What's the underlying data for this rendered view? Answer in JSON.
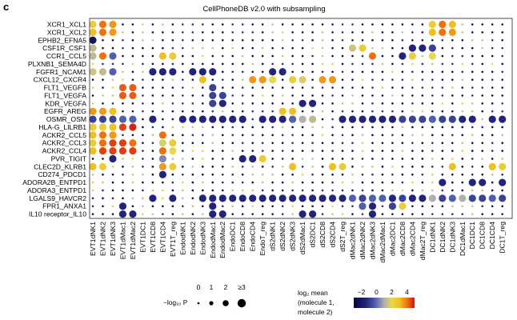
{
  "panel_letter": "c",
  "chart_data": {
    "type": "heatmap",
    "title": "CellPhoneDB v2.0 with subsampling",
    "rows": [
      "XCR1_XCL1",
      "XCR1_XCL2",
      "EPHB2_EFNA5",
      "CSF1R_CSF1",
      "CCR1_CCL5",
      "PLXNB1_SEMA4D",
      "FGFR1_NCAM1",
      "CXCL12_CXCR4",
      "FLT1_VEGFB",
      "FLT1_VEGFA",
      "KDR_VEGFA",
      "EGFR_AREG",
      "OSMR_OSM",
      "HLA-G_LILRB1",
      "ACKR2_CCL5",
      "ACKR2_CCL3",
      "ACKR2_CCL4",
      "PVR_TIGIT",
      "CLEC2D_KLRB1",
      "CD274_PDCD1",
      "ADORA2B_ENTPD1",
      "ADORA3_ENTPD1",
      "LGALS9_HAVCR2",
      "FPR1_ANXA1",
      "IL10 receptor_IL10"
    ],
    "columns": [
      "EVT1dNK1",
      "EVT1dNK2",
      "EVT1dNK3",
      "EVT1dMac1",
      "EVT1dMac2",
      "EVT1DC1",
      "EVT1CD8",
      "EVT1CD4",
      "EVT1T_reg",
      "EndodNK1",
      "EndodNK2",
      "EndodNK3",
      "EndodMac1",
      "EndodMac2",
      "EndoDC1",
      "EndoCD8",
      "EndoCD4",
      "EndoT_reg",
      "dS2dNK1",
      "dS2dNK2",
      "dS2dNK3",
      "dS2dMac1",
      "dS2DC1",
      "dS2CD8",
      "dS2CD4",
      "dS2T_reg",
      "dMac2dNK1",
      "dMac2dNK2",
      "dMac2dNK3",
      "dMac2dMac1",
      "dMac2DC1",
      "dMac2CD8",
      "dMac2CD4",
      "dMac2T_reg",
      "DC1dNK1",
      "DC1dNK2",
      "DC1dNK3",
      "DC1dMac1",
      "DC1DC1",
      "DC1CD8",
      "DC1CD4",
      "DC1T_reg"
    ],
    "size_legend": {
      "label": "−log₁₀ P",
      "values": [
        "0",
        "1",
        "2",
        "≥3"
      ]
    },
    "color_legend": {
      "title_line1": "log₂ mean",
      "title_line2": "(molecule 1,",
      "title_line3": "molecule 2)",
      "ticks": [
        "−2",
        "0",
        "2",
        "4"
      ],
      "range": [
        -3,
        5
      ]
    },
    "colors": {
      "low": "#0a0a5a",
      "mid": "#8888a8",
      "high": "#f0e020",
      "max": "#e01010"
    },
    "grid": false,
    "cells": [
      {
        "r": 0,
        "c": 0,
        "v": 2.5,
        "p": 3
      },
      {
        "r": 0,
        "c": 1,
        "v": 4,
        "p": 3
      },
      {
        "r": 0,
        "c": 2,
        "v": 3.5,
        "p": 3
      },
      {
        "r": 0,
        "c": 34,
        "v": 2.5,
        "p": 3
      },
      {
        "r": 0,
        "c": 35,
        "v": 4,
        "p": 3
      },
      {
        "r": 0,
        "c": 36,
        "v": 3,
        "p": 3
      },
      {
        "r": 1,
        "c": 0,
        "v": 3,
        "p": 3
      },
      {
        "r": 1,
        "c": 1,
        "v": 4,
        "p": 3
      },
      {
        "r": 1,
        "c": 2,
        "v": 3.5,
        "p": 3
      },
      {
        "r": 1,
        "c": 34,
        "v": 3,
        "p": 3
      },
      {
        "r": 1,
        "c": 35,
        "v": 4,
        "p": 3
      },
      {
        "r": 1,
        "c": 36,
        "v": 3.5,
        "p": 3
      },
      {
        "r": 2,
        "c": 0,
        "v": -2.5,
        "p": 3
      },
      {
        "r": 3,
        "c": 0,
        "v": 0.5,
        "p": 3
      },
      {
        "r": 3,
        "c": 26,
        "v": 1,
        "p": 3
      },
      {
        "r": 3,
        "c": 27,
        "v": 2.5,
        "p": 3
      },
      {
        "r": 3,
        "c": 32,
        "v": -2,
        "p": 3
      },
      {
        "r": 3,
        "c": 33,
        "v": -2,
        "p": 3
      },
      {
        "r": 3,
        "c": 34,
        "v": -1.5,
        "p": 3
      },
      {
        "r": 4,
        "c": 0,
        "v": 0.5,
        "p": 3
      },
      {
        "r": 4,
        "c": 1,
        "v": 4,
        "p": 3
      },
      {
        "r": 4,
        "c": 2,
        "v": -1,
        "p": 3
      },
      {
        "r": 4,
        "c": 7,
        "v": 3,
        "p": 3
      },
      {
        "r": 4,
        "c": 8,
        "v": 2.5,
        "p": 3
      },
      {
        "r": 4,
        "c": 28,
        "v": 4,
        "p": 3
      },
      {
        "r": 4,
        "c": 31,
        "v": -2,
        "p": 3
      },
      {
        "r": 4,
        "c": 32,
        "v": 2.5,
        "p": 3
      },
      {
        "r": 4,
        "c": 34,
        "v": 2,
        "p": 3
      },
      {
        "r": 6,
        "c": 0,
        "v": 1,
        "p": 3
      },
      {
        "r": 6,
        "c": 1,
        "v": 0.5,
        "p": 3
      },
      {
        "r": 6,
        "c": 2,
        "v": -1,
        "p": 3
      },
      {
        "r": 6,
        "c": 6,
        "v": -2,
        "p": 3
      },
      {
        "r": 6,
        "c": 7,
        "v": -2,
        "p": 3
      },
      {
        "r": 6,
        "c": 8,
        "v": -2,
        "p": 3
      },
      {
        "r": 6,
        "c": 10,
        "v": -2,
        "p": 3
      },
      {
        "r": 6,
        "c": 11,
        "v": -2,
        "p": 3
      },
      {
        "r": 6,
        "c": 12,
        "v": -2,
        "p": 3
      },
      {
        "r": 6,
        "c": 18,
        "v": -2,
        "p": 3
      },
      {
        "r": 6,
        "c": 19,
        "v": -2,
        "p": 3
      },
      {
        "r": 7,
        "c": 11,
        "v": 3,
        "p": 3
      },
      {
        "r": 7,
        "c": 16,
        "v": 3.5,
        "p": 3
      },
      {
        "r": 7,
        "c": 17,
        "v": 3.5,
        "p": 3
      },
      {
        "r": 7,
        "c": 18,
        "v": 2,
        "p": 3
      },
      {
        "r": 7,
        "c": 20,
        "v": 2.5,
        "p": 3
      },
      {
        "r": 7,
        "c": 21,
        "v": 1.5,
        "p": 3
      },
      {
        "r": 7,
        "c": 23,
        "v": 3.5,
        "p": 3
      },
      {
        "r": 7,
        "c": 24,
        "v": 3.5,
        "p": 3
      },
      {
        "r": 8,
        "c": 3,
        "v": 4.2,
        "p": 3
      },
      {
        "r": 8,
        "c": 4,
        "v": 4.2,
        "p": 3
      },
      {
        "r": 8,
        "c": 12,
        "v": -1.5,
        "p": 3
      },
      {
        "r": 9,
        "c": 3,
        "v": 4.2,
        "p": 3
      },
      {
        "r": 9,
        "c": 4,
        "v": 4.2,
        "p": 3
      },
      {
        "r": 9,
        "c": 12,
        "v": -1.5,
        "p": 3
      },
      {
        "r": 9,
        "c": 13,
        "v": -1.5,
        "p": 3
      },
      {
        "r": 10,
        "c": 12,
        "v": -1.5,
        "p": 3
      },
      {
        "r": 10,
        "c": 13,
        "v": -2,
        "p": 3
      },
      {
        "r": 10,
        "c": 21,
        "v": -2,
        "p": 3
      },
      {
        "r": 10,
        "c": 22,
        "v": -2,
        "p": 3
      },
      {
        "r": 11,
        "c": 0,
        "v": 3.5,
        "p": 3
      },
      {
        "r": 11,
        "c": 1,
        "v": 3.5,
        "p": 3
      },
      {
        "r": 11,
        "c": 2,
        "v": 3,
        "p": 3
      },
      {
        "r": 11,
        "c": 19,
        "v": 3,
        "p": 3
      },
      {
        "r": 11,
        "c": 20,
        "v": 3,
        "p": 3
      },
      {
        "r": 12,
        "c": 0,
        "v": -1.5,
        "p": 3
      },
      {
        "r": 12,
        "c": 1,
        "v": -1.5,
        "p": 3
      },
      {
        "r": 12,
        "c": 2,
        "v": -1.5,
        "p": 3
      },
      {
        "r": 12,
        "c": 3,
        "v": -1,
        "p": 3
      },
      {
        "r": 12,
        "c": 4,
        "v": -1,
        "p": 3
      },
      {
        "r": 12,
        "c": 6,
        "v": -2,
        "p": 3
      },
      {
        "r": 12,
        "c": 9,
        "v": -2,
        "p": 3
      },
      {
        "r": 12,
        "c": 10,
        "v": -2,
        "p": 3
      },
      {
        "r": 12,
        "c": 11,
        "v": -2,
        "p": 3
      },
      {
        "r": 12,
        "c": 12,
        "v": -2,
        "p": 3
      },
      {
        "r": 12,
        "c": 13,
        "v": -2,
        "p": 3
      },
      {
        "r": 12,
        "c": 14,
        "v": -2,
        "p": 3
      },
      {
        "r": 12,
        "c": 15,
        "v": -2,
        "p": 3
      },
      {
        "r": 12,
        "c": 17,
        "v": -2,
        "p": 3
      },
      {
        "r": 12,
        "c": 18,
        "v": -2,
        "p": 3
      },
      {
        "r": 12,
        "c": 19,
        "v": -2,
        "p": 3
      },
      {
        "r": 12,
        "c": 20,
        "v": -1,
        "p": 3
      },
      {
        "r": 12,
        "c": 21,
        "v": 0,
        "p": 3
      },
      {
        "r": 12,
        "c": 22,
        "v": 0.5,
        "p": 3
      },
      {
        "r": 12,
        "c": 25,
        "v": -2,
        "p": 3
      },
      {
        "r": 12,
        "c": 26,
        "v": -2,
        "p": 3
      },
      {
        "r": 12,
        "c": 27,
        "v": -2,
        "p": 3
      },
      {
        "r": 12,
        "c": 28,
        "v": -2,
        "p": 3
      },
      {
        "r": 12,
        "c": 29,
        "v": -2,
        "p": 3
      },
      {
        "r": 12,
        "c": 30,
        "v": -2,
        "p": 3
      },
      {
        "r": 12,
        "c": 31,
        "v": -1.5,
        "p": 3
      },
      {
        "r": 12,
        "c": 32,
        "v": -1.5,
        "p": 3
      },
      {
        "r": 12,
        "c": 33,
        "v": -1.5,
        "p": 3
      },
      {
        "r": 12,
        "c": 34,
        "v": -1,
        "p": 3
      },
      {
        "r": 12,
        "c": 35,
        "v": -1.5,
        "p": 3
      },
      {
        "r": 12,
        "c": 36,
        "v": -1.5,
        "p": 3
      },
      {
        "r": 12,
        "c": 37,
        "v": -2,
        "p": 3
      },
      {
        "r": 12,
        "c": 38,
        "v": -2,
        "p": 3
      },
      {
        "r": 12,
        "c": 40,
        "v": -2,
        "p": 3
      },
      {
        "r": 12,
        "c": 41,
        "v": -2,
        "p": 3
      },
      {
        "r": 13,
        "c": 0,
        "v": 2.5,
        "p": 3
      },
      {
        "r": 13,
        "c": 1,
        "v": 2.5,
        "p": 3
      },
      {
        "r": 13,
        "c": 2,
        "v": 3,
        "p": 3
      },
      {
        "r": 13,
        "c": 3,
        "v": 4.5,
        "p": 3
      },
      {
        "r": 13,
        "c": 4,
        "v": 4.8,
        "p": 3
      },
      {
        "r": 14,
        "c": 0,
        "v": 3,
        "p": 3
      },
      {
        "r": 14,
        "c": 1,
        "v": 4,
        "p": 3
      },
      {
        "r": 14,
        "c": 2,
        "v": 3.5,
        "p": 3
      },
      {
        "r": 14,
        "c": 7,
        "v": 4,
        "p": 3
      },
      {
        "r": 15,
        "c": 0,
        "v": 2.5,
        "p": 3
      },
      {
        "r": 15,
        "c": 1,
        "v": 4,
        "p": 3
      },
      {
        "r": 15,
        "c": 2,
        "v": 4.5,
        "p": 3
      },
      {
        "r": 15,
        "c": 3,
        "v": 4.5,
        "p": 3
      },
      {
        "r": 15,
        "c": 4,
        "v": 4,
        "p": 3
      },
      {
        "r": 15,
        "c": 7,
        "v": 1.5,
        "p": 3
      },
      {
        "r": 15,
        "c": 8,
        "v": 2.5,
        "p": 3
      },
      {
        "r": 16,
        "c": 0,
        "v": 3,
        "p": 3
      },
      {
        "r": 16,
        "c": 1,
        "v": 4.5,
        "p": 3
      },
      {
        "r": 16,
        "c": 2,
        "v": 4.5,
        "p": 3
      },
      {
        "r": 16,
        "c": 3,
        "v": 4.5,
        "p": 3
      },
      {
        "r": 16,
        "c": 4,
        "v": 4.5,
        "p": 3
      },
      {
        "r": 16,
        "c": 7,
        "v": 4,
        "p": 3
      },
      {
        "r": 16,
        "c": 8,
        "v": 2,
        "p": 3
      },
      {
        "r": 17,
        "c": 2,
        "v": -2,
        "p": 3
      },
      {
        "r": 17,
        "c": 7,
        "v": -0.5,
        "p": 3
      },
      {
        "r": 17,
        "c": 15,
        "v": -2,
        "p": 3
      },
      {
        "r": 17,
        "c": 16,
        "v": -2,
        "p": 3
      },
      {
        "r": 17,
        "c": 17,
        "v": 2.5,
        "p": 3
      },
      {
        "r": 18,
        "c": 0,
        "v": 3,
        "p": 3
      },
      {
        "r": 18,
        "c": 1,
        "v": 2.5,
        "p": 3
      },
      {
        "r": 18,
        "c": 7,
        "v": 3.5,
        "p": 3
      },
      {
        "r": 18,
        "c": 8,
        "v": 2.5,
        "p": 3
      },
      {
        "r": 18,
        "c": 20,
        "v": 3,
        "p": 3
      },
      {
        "r": 18,
        "c": 24,
        "v": 3,
        "p": 3
      },
      {
        "r": 18,
        "c": 25,
        "v": 2.5,
        "p": 3
      },
      {
        "r": 18,
        "c": 36,
        "v": 3,
        "p": 3
      },
      {
        "r": 18,
        "c": 40,
        "v": 3,
        "p": 3
      },
      {
        "r": 18,
        "c": 41,
        "v": 2.5,
        "p": 3
      },
      {
        "r": 19,
        "c": 7,
        "v": -2,
        "p": 3
      },
      {
        "r": 20,
        "c": 35,
        "v": -2,
        "p": 3
      },
      {
        "r": 20,
        "c": 38,
        "v": -2,
        "p": 3
      },
      {
        "r": 20,
        "c": 39,
        "v": -2,
        "p": 3
      },
      {
        "r": 20,
        "c": 41,
        "v": -2,
        "p": 3
      },
      {
        "r": 22,
        "c": 6,
        "v": -2,
        "p": 3
      },
      {
        "r": 22,
        "c": 8,
        "v": -2,
        "p": 3
      },
      {
        "r": 22,
        "c": 11,
        "v": -2,
        "p": 3
      },
      {
        "r": 22,
        "c": 12,
        "v": -2,
        "p": 3
      },
      {
        "r": 22,
        "c": 13,
        "v": -2,
        "p": 3
      },
      {
        "r": 22,
        "c": 14,
        "v": -2,
        "p": 3
      },
      {
        "r": 22,
        "c": 15,
        "v": -2,
        "p": 3
      },
      {
        "r": 22,
        "c": 16,
        "v": -2,
        "p": 3
      },
      {
        "r": 22,
        "c": 17,
        "v": -2,
        "p": 3
      },
      {
        "r": 22,
        "c": 18,
        "v": -2,
        "p": 3
      },
      {
        "r": 22,
        "c": 19,
        "v": -2,
        "p": 3
      },
      {
        "r": 22,
        "c": 20,
        "v": -2,
        "p": 3
      },
      {
        "r": 22,
        "c": 21,
        "v": -2,
        "p": 3
      },
      {
        "r": 22,
        "c": 22,
        "v": -2,
        "p": 3
      },
      {
        "r": 22,
        "c": 23,
        "v": -2,
        "p": 3
      },
      {
        "r": 22,
        "c": 24,
        "v": -2,
        "p": 3
      },
      {
        "r": 22,
        "c": 25,
        "v": -2,
        "p": 3
      },
      {
        "r": 22,
        "c": 26,
        "v": -1,
        "p": 3
      },
      {
        "r": 22,
        "c": 27,
        "v": -1.5,
        "p": 3
      },
      {
        "r": 22,
        "c": 28,
        "v": -1,
        "p": 3
      },
      {
        "r": 22,
        "c": 29,
        "v": -1,
        "p": 3
      },
      {
        "r": 22,
        "c": 30,
        "v": -2,
        "p": 3
      },
      {
        "r": 22,
        "c": 31,
        "v": -1.5,
        "p": 3
      },
      {
        "r": 22,
        "c": 32,
        "v": -2,
        "p": 3
      },
      {
        "r": 22,
        "c": 33,
        "v": -2,
        "p": 3
      },
      {
        "r": 22,
        "c": 34,
        "v": 0,
        "p": 3
      },
      {
        "r": 22,
        "c": 35,
        "v": -1.5,
        "p": 3
      },
      {
        "r": 22,
        "c": 36,
        "v": -1,
        "p": 3
      },
      {
        "r": 22,
        "c": 37,
        "v": 0,
        "p": 3
      },
      {
        "r": 22,
        "c": 38,
        "v": -1.5,
        "p": 3
      },
      {
        "r": 22,
        "c": 39,
        "v": -1.5,
        "p": 3
      },
      {
        "r": 22,
        "c": 40,
        "v": -1,
        "p": 3
      },
      {
        "r": 22,
        "c": 41,
        "v": -1.5,
        "p": 3
      },
      {
        "r": 23,
        "c": 3,
        "v": -2,
        "p": 3
      },
      {
        "r": 23,
        "c": 12,
        "v": -2,
        "p": 3
      },
      {
        "r": 23,
        "c": 27,
        "v": -1,
        "p": 3
      },
      {
        "r": 23,
        "c": 28,
        "v": -2,
        "p": 3
      },
      {
        "r": 23,
        "c": 30,
        "v": -1.5,
        "p": 3
      },
      {
        "r": 23,
        "c": 31,
        "v": 2.5,
        "p": 3
      },
      {
        "r": 24,
        "c": 3,
        "v": -2,
        "p": 3
      },
      {
        "r": 24,
        "c": 4,
        "v": -2,
        "p": 3
      },
      {
        "r": 24,
        "c": 12,
        "v": -2,
        "p": 3
      },
      {
        "r": 24,
        "c": 13,
        "v": -2,
        "p": 3
      },
      {
        "r": 24,
        "c": 21,
        "v": -2,
        "p": 3
      },
      {
        "r": 24,
        "c": 22,
        "v": -2,
        "p": 3
      },
      {
        "r": 24,
        "c": 28,
        "v": -2,
        "p": 3
      }
    ]
  }
}
